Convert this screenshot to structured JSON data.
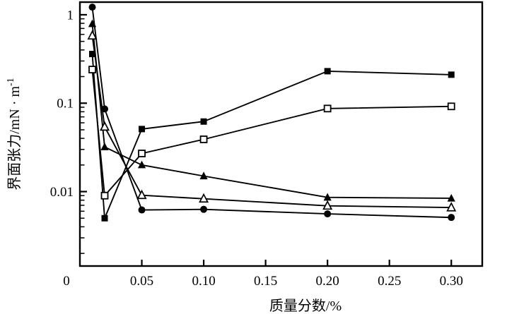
{
  "figure": {
    "background": "#ffffff",
    "ink": "#000000"
  },
  "chart_data": {
    "type": "line",
    "title": "",
    "xlabel": "质量分数/%",
    "ylabel": {
      "base": "界面张力/mN · m",
      "superscript": "-1",
      "full_text": "界面张力/mN · m⁻¹"
    },
    "x_scale": "linear",
    "y_scale": "log",
    "xlim": [
      0,
      0.325
    ],
    "ylim": [
      0.00144,
      1.39
    ],
    "grid": false,
    "legend": "none",
    "frame": true,
    "x_ticks": [
      {
        "value": 0,
        "label": "0",
        "tick": false
      },
      {
        "value": 0.05,
        "label": "0.05",
        "tick": true
      },
      {
        "value": 0.1,
        "label": "0.10",
        "tick": true
      },
      {
        "value": 0.15,
        "label": "0.15",
        "tick": true
      },
      {
        "value": 0.2,
        "label": "0.20",
        "tick": true
      },
      {
        "value": 0.25,
        "label": "0.25",
        "tick": true
      },
      {
        "value": 0.3,
        "label": "0.30",
        "tick": true
      }
    ],
    "y_ticks": [
      {
        "value": 1,
        "label": "1"
      },
      {
        "value": 0.1,
        "label": "0.1"
      },
      {
        "value": 0.01,
        "label": "0.01"
      }
    ],
    "x": [
      0.01,
      0.02,
      0.05,
      0.1,
      0.2,
      0.3
    ],
    "series": [
      {
        "name": "filled-square",
        "marker": "filled-square",
        "values": [
          0.36,
          0.005,
          0.051,
          0.062,
          0.23,
          0.21
        ]
      },
      {
        "name": "open-square",
        "marker": "open-square",
        "values": [
          0.24,
          0.009,
          0.027,
          0.039,
          0.087,
          0.092
        ]
      },
      {
        "name": "filled-triangle",
        "marker": "filled-triangle",
        "values": [
          0.79,
          0.032,
          0.02,
          0.015,
          0.0086,
          0.0084
        ]
      },
      {
        "name": "open-triangle",
        "marker": "open-triangle",
        "values": [
          0.58,
          0.054,
          0.0091,
          0.0083,
          0.0069,
          0.0066
        ]
      },
      {
        "name": "filled-circle",
        "marker": "filled-circle",
        "values": [
          1.22,
          0.086,
          0.0062,
          0.0063,
          0.0056,
          0.0051
        ]
      }
    ]
  }
}
